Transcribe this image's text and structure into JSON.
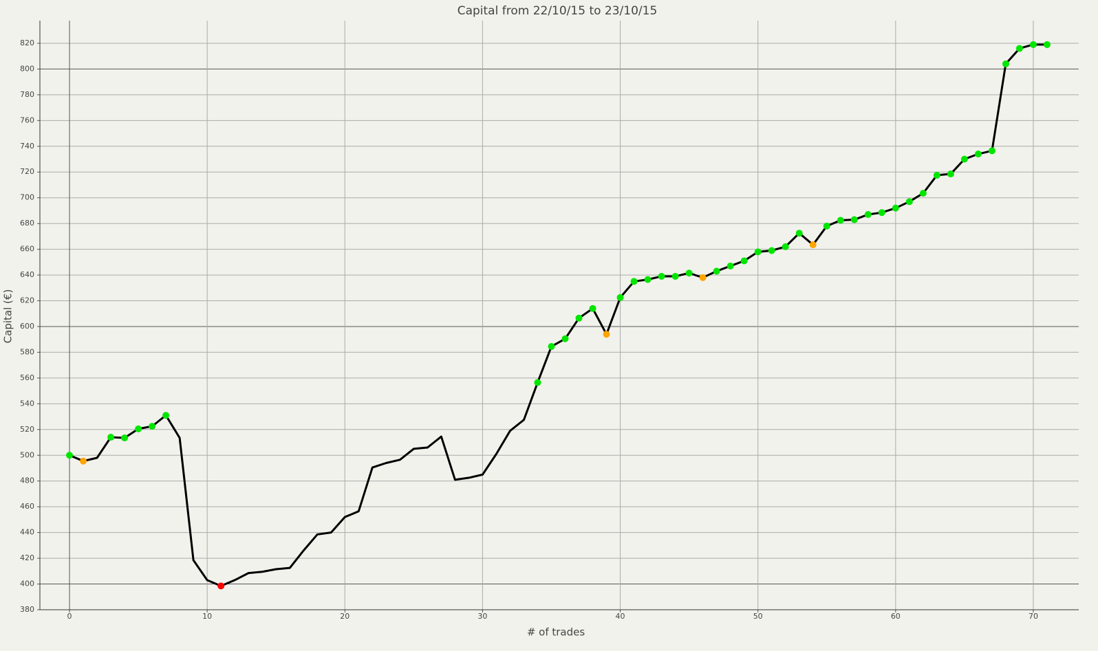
{
  "chart_data": {
    "type": "line",
    "title": "Capital from 22/10/15 to 23/10/15",
    "x_label": "# of trades",
    "y_label": "Capital (€)",
    "x": [
      0,
      1,
      2,
      3,
      4,
      5,
      6,
      7,
      8,
      9,
      10,
      11,
      12,
      13,
      14,
      15,
      16,
      17,
      18,
      19,
      20,
      21,
      22,
      23,
      24,
      25,
      26,
      27,
      28,
      29,
      30,
      31,
      32,
      33,
      34,
      35,
      36,
      37,
      38,
      39,
      40,
      41,
      42,
      43,
      44,
      45,
      46,
      47,
      48,
      49,
      50,
      51,
      52,
      53,
      54,
      55,
      56,
      57,
      58,
      59,
      60,
      61,
      62,
      63,
      64,
      65,
      66,
      67,
      68,
      69,
      70,
      71
    ],
    "series": [
      {
        "color": "#000000",
        "values": [
          500,
          495.5,
          498,
          514,
          513.5,
          520.5,
          522.5,
          531,
          513.5,
          418.5,
          403,
          398.5,
          403,
          408.5,
          409.5,
          411.5,
          412.5,
          426,
          438.5,
          440,
          452,
          456.5,
          490.5,
          494,
          496.5,
          505,
          506,
          514.5,
          481,
          482.5,
          485,
          501,
          519,
          527.5,
          556.5,
          584.5,
          590.5,
          606.5,
          614,
          594,
          622.5,
          635,
          636.5,
          639,
          639,
          641.5,
          638,
          643,
          647,
          651,
          658,
          659,
          662,
          672.5,
          663.5,
          678,
          682.5,
          683,
          687,
          688.5,
          692,
          697,
          703.5,
          717.5,
          718.5,
          730,
          734,
          736.5,
          804,
          816,
          819,
          819
        ],
        "point_colors": [
          "#00e600",
          "#ffa500",
          null,
          "#00e600",
          "#00e600",
          "#00e600",
          "#00e600",
          "#00e600",
          null,
          null,
          null,
          "#ff0000",
          null,
          null,
          null,
          null,
          null,
          null,
          null,
          null,
          null,
          null,
          null,
          null,
          null,
          null,
          null,
          null,
          null,
          null,
          null,
          null,
          null,
          null,
          "#00e600",
          "#00e600",
          "#00e600",
          "#00e600",
          "#00e600",
          "#ffa500",
          "#00e600",
          "#00e600",
          "#00e600",
          "#00e600",
          "#00e600",
          "#00e600",
          "#ffa500",
          "#00e600",
          "#00e600",
          "#00e600",
          "#00e600",
          "#00e600",
          "#00e600",
          "#00e600",
          "#ffa500",
          "#00e600",
          "#00e600",
          "#00e600",
          "#00e600",
          "#00e600",
          "#00e600",
          "#00e600",
          "#00e600",
          "#00e600",
          "#00e600",
          "#00e600",
          "#00e600",
          "#00e600",
          "#00e600",
          "#00e600",
          "#00e600",
          "#00e600"
        ]
      }
    ],
    "xlim": [
      -2.15,
      73.3
    ],
    "ylim": [
      380,
      837.6
    ],
    "xticks": [
      0,
      10,
      20,
      30,
      40,
      50,
      60,
      70
    ],
    "yticks": [
      380,
      400,
      420,
      440,
      460,
      480,
      500,
      520,
      540,
      560,
      580,
      600,
      620,
      640,
      660,
      680,
      700,
      720,
      740,
      760,
      780,
      800,
      820
    ],
    "grid": true
  }
}
